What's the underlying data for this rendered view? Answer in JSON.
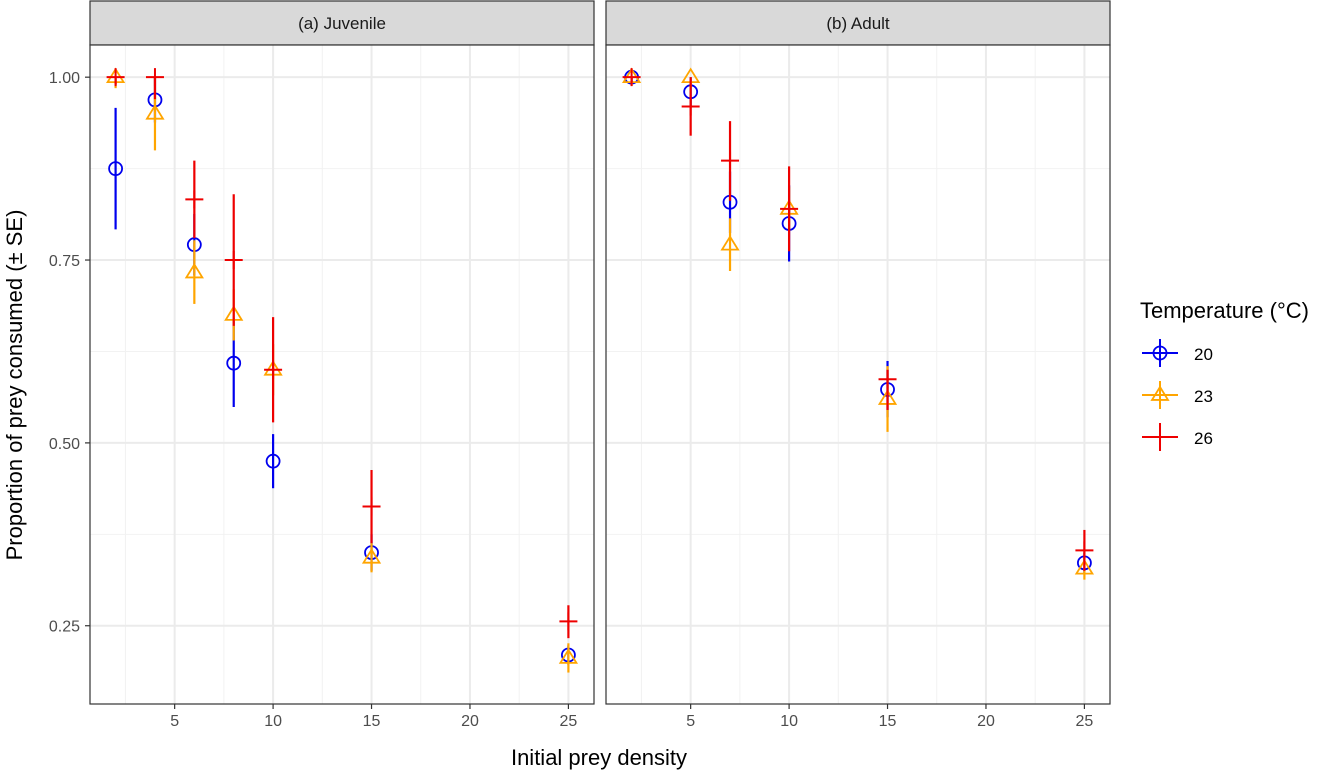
{
  "colors": {
    "t20": "#0000ee",
    "t23": "#ffa500",
    "t26": "#ee0000",
    "grid": "#ebebeb",
    "strip_bg": "#d9d9d9",
    "panel_border": "#333333"
  },
  "chart_data": {
    "type": "scatter",
    "xlabel": "Initial prey density",
    "ylabel": "Proportion of prey consumed (± SE)",
    "xlim": [
      0.7,
      26.3
    ],
    "ylim": [
      0.143,
      1.044
    ],
    "x_ticks": [
      5,
      10,
      15,
      20,
      25
    ],
    "x_tick_labels": [
      "5",
      "10",
      "15",
      "20",
      "25"
    ],
    "y_ticks": [
      0.25,
      0.5,
      0.75,
      1.0
    ],
    "y_tick_labels": [
      "0.25",
      "0.50",
      "0.75",
      "1.00"
    ],
    "grid": true,
    "legend": {
      "title": "Temperature (°C)",
      "placement": "right",
      "entries": [
        {
          "label": "20",
          "color_key": "t20",
          "shape": "circle"
        },
        {
          "label": "23",
          "color_key": "t23",
          "shape": "triangle"
        },
        {
          "label": "26",
          "color_key": "t26",
          "shape": "plus"
        }
      ]
    },
    "panels": [
      {
        "strip": "(a) Juvenile",
        "series": [
          {
            "name": "20",
            "shape": "circle",
            "color_key": "t20",
            "points": [
              {
                "x": 2,
                "y": 0.875,
                "lo": 0.792,
                "hi": 0.958
              },
              {
                "x": 4,
                "y": 0.969,
                "lo": 0.938,
                "hi": 1.0
              },
              {
                "x": 6,
                "y": 0.771,
                "lo": 0.729,
                "hi": 0.813
              },
              {
                "x": 8,
                "y": 0.609,
                "lo": 0.549,
                "hi": 0.67
              },
              {
                "x": 10,
                "y": 0.475,
                "lo": 0.438,
                "hi": 0.512
              },
              {
                "x": 15,
                "y": 0.35,
                "lo": 0.325,
                "hi": 0.375
              },
              {
                "x": 25,
                "y": 0.21,
                "lo": 0.197,
                "hi": 0.223
              }
            ]
          },
          {
            "name": "23",
            "shape": "triangle",
            "color_key": "t23",
            "points": [
              {
                "x": 2,
                "y": 1.0,
                "lo": 0.985,
                "hi": 1.0
              },
              {
                "x": 4,
                "y": 0.95,
                "lo": 0.9,
                "hi": 1.0
              },
              {
                "x": 6,
                "y": 0.733,
                "lo": 0.69,
                "hi": 0.777
              },
              {
                "x": 8,
                "y": 0.675,
                "lo": 0.64,
                "hi": 0.71
              },
              {
                "x": 10,
                "y": 0.6,
                "lo": 0.565,
                "hi": 0.635
              },
              {
                "x": 15,
                "y": 0.343,
                "lo": 0.323,
                "hi": 0.363
              },
              {
                "x": 25,
                "y": 0.206,
                "lo": 0.186,
                "hi": 0.226
              }
            ]
          },
          {
            "name": "26",
            "shape": "plus",
            "color_key": "t26",
            "points": [
              {
                "x": 2,
                "y": 1.0,
                "lo": 0.99,
                "hi": 1.0
              },
              {
                "x": 4,
                "y": 1.0,
                "lo": 0.97,
                "hi": 1.0
              },
              {
                "x": 6,
                "y": 0.833,
                "lo": 0.78,
                "hi": 0.886
              },
              {
                "x": 8,
                "y": 0.75,
                "lo": 0.66,
                "hi": 0.84
              },
              {
                "x": 10,
                "y": 0.6,
                "lo": 0.528,
                "hi": 0.672
              },
              {
                "x": 15,
                "y": 0.413,
                "lo": 0.363,
                "hi": 0.463
              },
              {
                "x": 25,
                "y": 0.256,
                "lo": 0.233,
                "hi": 0.278
              }
            ]
          }
        ]
      },
      {
        "strip": "(b) Adult",
        "series": [
          {
            "name": "20",
            "shape": "circle",
            "color_key": "t20",
            "points": [
              {
                "x": 2,
                "y": 1.0,
                "lo": 0.993,
                "hi": 1.0
              },
              {
                "x": 5,
                "y": 0.98,
                "lo": 0.96,
                "hi": 1.0
              },
              {
                "x": 7,
                "y": 0.829,
                "lo": 0.787,
                "hi": 0.871
              },
              {
                "x": 10,
                "y": 0.8,
                "lo": 0.748,
                "hi": 0.852
              },
              {
                "x": 15,
                "y": 0.573,
                "lo": 0.535,
                "hi": 0.612
              },
              {
                "x": 25,
                "y": 0.336,
                "lo": 0.322,
                "hi": 0.35
              }
            ]
          },
          {
            "name": "23",
            "shape": "triangle",
            "color_key": "t23",
            "points": [
              {
                "x": 2,
                "y": 1.0,
                "lo": 0.988,
                "hi": 1.0
              },
              {
                "x": 5,
                "y": 1.0,
                "lo": 0.985,
                "hi": 1.0
              },
              {
                "x": 7,
                "y": 0.771,
                "lo": 0.735,
                "hi": 0.807
              },
              {
                "x": 10,
                "y": 0.82,
                "lo": 0.79,
                "hi": 0.85
              },
              {
                "x": 15,
                "y": 0.56,
                "lo": 0.515,
                "hi": 0.605
              },
              {
                "x": 25,
                "y": 0.328,
                "lo": 0.313,
                "hi": 0.343
              }
            ]
          },
          {
            "name": "26",
            "shape": "plus",
            "color_key": "t26",
            "points": [
              {
                "x": 2,
                "y": 1.0,
                "lo": 0.993,
                "hi": 1.0
              },
              {
                "x": 5,
                "y": 0.96,
                "lo": 0.92,
                "hi": 1.0
              },
              {
                "x": 7,
                "y": 0.886,
                "lo": 0.831,
                "hi": 0.94
              },
              {
                "x": 10,
                "y": 0.82,
                "lo": 0.762,
                "hi": 0.878
              },
              {
                "x": 15,
                "y": 0.587,
                "lo": 0.545,
                "hi": 0.6
              },
              {
                "x": 25,
                "y": 0.353,
                "lo": 0.325,
                "hi": 0.381
              }
            ]
          }
        ]
      }
    ]
  }
}
